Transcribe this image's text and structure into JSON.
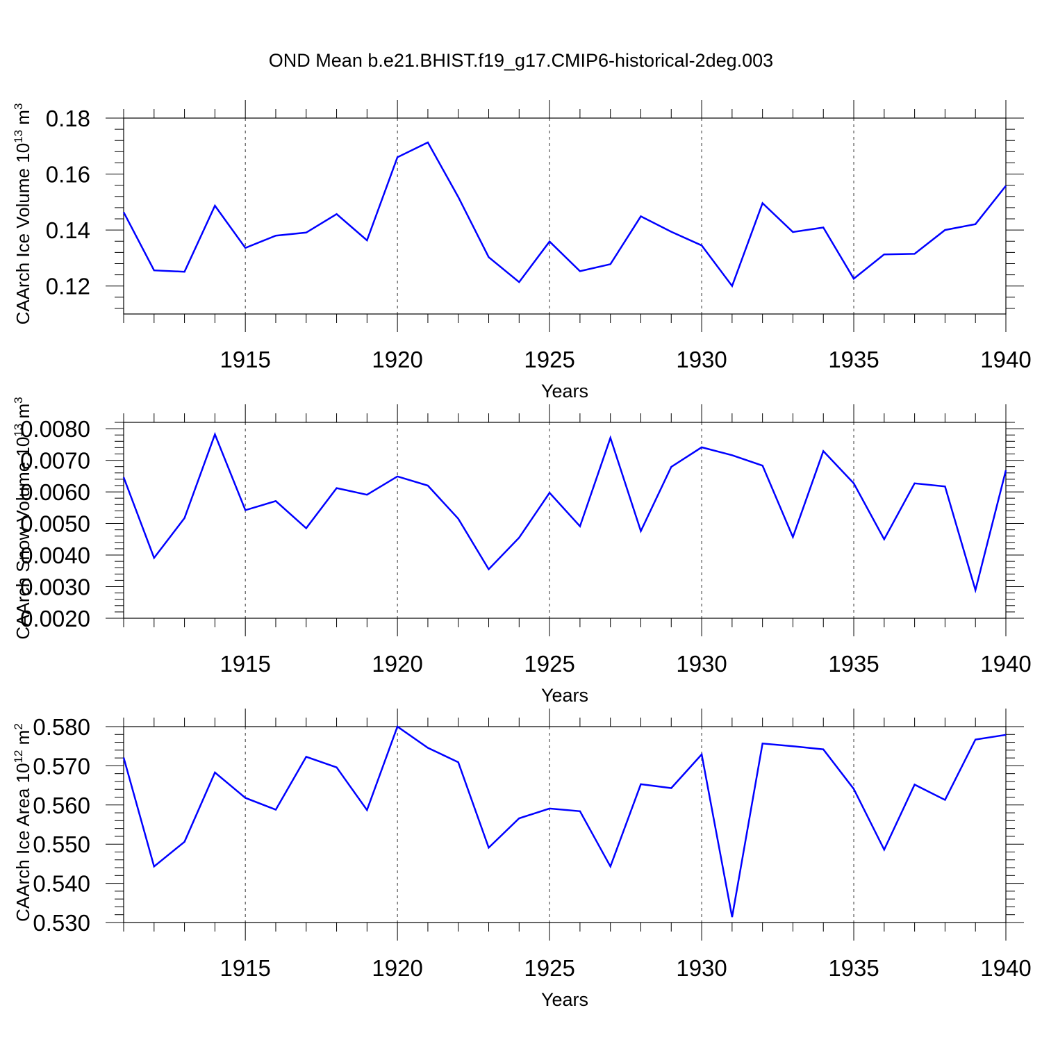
{
  "title": "OND Mean b.e21.BHIST.f19_g17.CMIP6-historical-2deg.003",
  "line_color": "#0000ff",
  "chart_data": [
    {
      "type": "line",
      "ylabel_main": "CAArch Ice Volume 10",
      "ylabel_exp": "13",
      "ylabel_unit": " m",
      "ylabel_unit_exp": "3",
      "xlabel": "Years",
      "xlim": [
        1911,
        1940
      ],
      "ylim": [
        0.11,
        0.18
      ],
      "x_ticks": [
        1915,
        1920,
        1925,
        1930,
        1935,
        1940
      ],
      "y_ticks": [
        0.12,
        0.14,
        0.16,
        0.18
      ],
      "y_tick_labels": [
        "0.12",
        "0.14",
        "0.16",
        "0.18"
      ],
      "series": [
        {
          "name": "CAArch Ice Volume",
          "x": [
            1911,
            1912,
            1913,
            1914,
            1915,
            1916,
            1917,
            1918,
            1919,
            1920,
            1921,
            1922,
            1923,
            1924,
            1925,
            1926,
            1927,
            1928,
            1929,
            1930,
            1931,
            1932,
            1933,
            1934,
            1935,
            1936,
            1937,
            1938,
            1939,
            1940
          ],
          "values": [
            0.1464,
            0.1256,
            0.1251,
            0.1487,
            0.1336,
            0.138,
            0.1391,
            0.1457,
            0.1363,
            0.166,
            0.1713,
            0.1518,
            0.1303,
            0.1214,
            0.1359,
            0.1253,
            0.1278,
            0.1449,
            0.1394,
            0.1345,
            0.12,
            0.1496,
            0.1393,
            0.1409,
            0.1226,
            0.1313,
            0.1315,
            0.14,
            0.1421,
            0.1558
          ]
        }
      ]
    },
    {
      "type": "line",
      "ylabel_main": "CAArch Snow Volume 10",
      "ylabel_exp": "13",
      "ylabel_unit": " m",
      "ylabel_unit_exp": "3",
      "xlabel": "Years",
      "xlim": [
        1911,
        1940
      ],
      "ylim": [
        0.002,
        0.0082
      ],
      "x_ticks": [
        1915,
        1920,
        1925,
        1930,
        1935,
        1940
      ],
      "y_ticks": [
        0.002,
        0.003,
        0.004,
        0.005,
        0.006,
        0.007,
        0.008
      ],
      "y_tick_labels": [
        "0.0020",
        "0.0030",
        "0.0040",
        "0.0050",
        "0.0060",
        "0.0070",
        "0.0080"
      ],
      "series": [
        {
          "name": "CAArch Snow Volume",
          "x": [
            1911,
            1912,
            1913,
            1914,
            1915,
            1916,
            1917,
            1918,
            1919,
            1920,
            1921,
            1922,
            1923,
            1924,
            1925,
            1926,
            1927,
            1928,
            1929,
            1930,
            1931,
            1932,
            1933,
            1934,
            1935,
            1936,
            1937,
            1938,
            1939,
            1940
          ],
          "values": [
            0.00646,
            0.00391,
            0.00517,
            0.00782,
            0.00542,
            0.00571,
            0.00485,
            0.00612,
            0.00591,
            0.00649,
            0.0062,
            0.00515,
            0.00355,
            0.00455,
            0.00597,
            0.00491,
            0.00771,
            0.00476,
            0.00679,
            0.00741,
            0.00716,
            0.00683,
            0.00457,
            0.00729,
            0.00627,
            0.0045,
            0.00627,
            0.00617,
            0.00289,
            0.00668
          ]
        }
      ]
    },
    {
      "type": "line",
      "ylabel_main": "CAArch Ice Area 10",
      "ylabel_exp": "12",
      "ylabel_unit": " m",
      "ylabel_unit_exp": "2",
      "xlabel": "Years",
      "xlim": [
        1911,
        1940
      ],
      "ylim": [
        0.53,
        0.58
      ],
      "x_ticks": [
        1915,
        1920,
        1925,
        1930,
        1935,
        1940
      ],
      "y_ticks": [
        0.53,
        0.54,
        0.55,
        0.56,
        0.57,
        0.58
      ],
      "y_tick_labels": [
        "0.530",
        "0.540",
        "0.550",
        "0.560",
        "0.570",
        "0.580"
      ],
      "series": [
        {
          "name": "CAArch Ice Area",
          "x": [
            1911,
            1912,
            1913,
            1914,
            1915,
            1916,
            1917,
            1918,
            1919,
            1920,
            1921,
            1922,
            1923,
            1924,
            1925,
            1926,
            1927,
            1928,
            1929,
            1930,
            1931,
            1932,
            1933,
            1934,
            1935,
            1936,
            1937,
            1938,
            1939,
            1940
          ],
          "values": [
            0.5721,
            0.5443,
            0.5506,
            0.5683,
            0.5618,
            0.5588,
            0.5723,
            0.5696,
            0.5587,
            0.58,
            0.5746,
            0.5709,
            0.5491,
            0.5566,
            0.5591,
            0.5584,
            0.5443,
            0.5653,
            0.5643,
            0.5729,
            0.5314,
            0.5757,
            0.575,
            0.5742,
            0.5641,
            0.5486,
            0.5652,
            0.5613,
            0.5767,
            0.5779
          ]
        }
      ]
    }
  ]
}
